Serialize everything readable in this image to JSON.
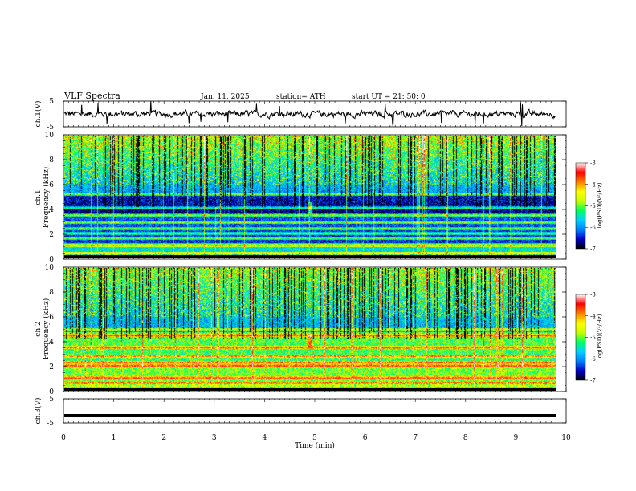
{
  "header": {
    "title": "VLF  Spectra",
    "date": "Jan.  11,  2025",
    "station": "station= ATH",
    "start": "start  UT  =    21: 50: 0"
  },
  "chart_data": [
    {
      "type": "line",
      "panel": "ch1-waveform",
      "ylabel": "ch.1(V)",
      "yticks": [
        "5",
        "-5"
      ],
      "ylim": [
        -5,
        5
      ],
      "xlim": [
        0,
        10
      ],
      "trace_color": "#000000",
      "approx_level": 0,
      "approx_amplitude": 1.5,
      "data_end_min": 9.8
    },
    {
      "type": "heatmap",
      "panel": "ch1-spectrogram",
      "ylabel": "ch.1\nFrequency  (kHz)",
      "ylabel_lines": [
        "ch.1",
        "Frequency  (kHz)"
      ],
      "yticks": [
        "0",
        "2",
        "4",
        "6",
        "8",
        "10"
      ],
      "ylim": [
        0,
        10
      ],
      "xlim": [
        0,
        10
      ],
      "colorbar": {
        "label": "log(PSD)(V²/Hz)",
        "ticks": [
          "-3",
          "-4",
          "-5",
          "-6",
          "-7"
        ],
        "range": [
          -7,
          -3
        ],
        "colors": [
          "#000000",
          "#0000c8",
          "#0080ff",
          "#00d0ff",
          "#00ff60",
          "#c8ff00",
          "#ffff00",
          "#ff8000",
          "#ff0000",
          "#ffffff"
        ]
      },
      "bands_khz": [
        0.4,
        1.0,
        1.6,
        2.0,
        2.4,
        2.9,
        3.5,
        4.1,
        5.2
      ],
      "sferic_burst_min": 5.0
    },
    {
      "type": "heatmap",
      "panel": "ch2-spectrogram",
      "ylabel": "ch.2\nFrequency  (kHz)",
      "ylabel_lines": [
        "ch.2",
        "Frequency  (kHz)"
      ],
      "yticks": [
        "0",
        "2",
        "4",
        "6",
        "8",
        "10"
      ],
      "ylim": [
        0,
        10
      ],
      "xlim": [
        0,
        10
      ],
      "colorbar": {
        "label": "log(PSD)(V²/Hz)",
        "ticks": [
          "-3",
          "-4",
          "-5",
          "-6",
          "-7"
        ],
        "range": [
          -7,
          -3
        ],
        "colors": [
          "#000000",
          "#0000c8",
          "#0080ff",
          "#00d0ff",
          "#00ff60",
          "#c8ff00",
          "#ffff00",
          "#ff8000",
          "#ff0000",
          "#ffffff"
        ]
      },
      "bands_khz": [
        0.6,
        1.0,
        2.0,
        2.3,
        2.8,
        3.5,
        4.5,
        5.0
      ],
      "sferic_burst_min": 5.0
    },
    {
      "type": "line",
      "panel": "ch3-waveform",
      "ylabel": "ch.3(V)",
      "yticks": [
        "5",
        "-5"
      ],
      "ylim": [
        -5,
        5
      ],
      "xlim": [
        0,
        10
      ],
      "trace_color": "#000000",
      "approx_level": -2,
      "data_end_min": 9.8
    }
  ],
  "xaxis": {
    "label": "Time  (min)",
    "ticks": [
      "0",
      "1",
      "2",
      "3",
      "4",
      "5",
      "6",
      "7",
      "8",
      "9",
      "10"
    ]
  }
}
